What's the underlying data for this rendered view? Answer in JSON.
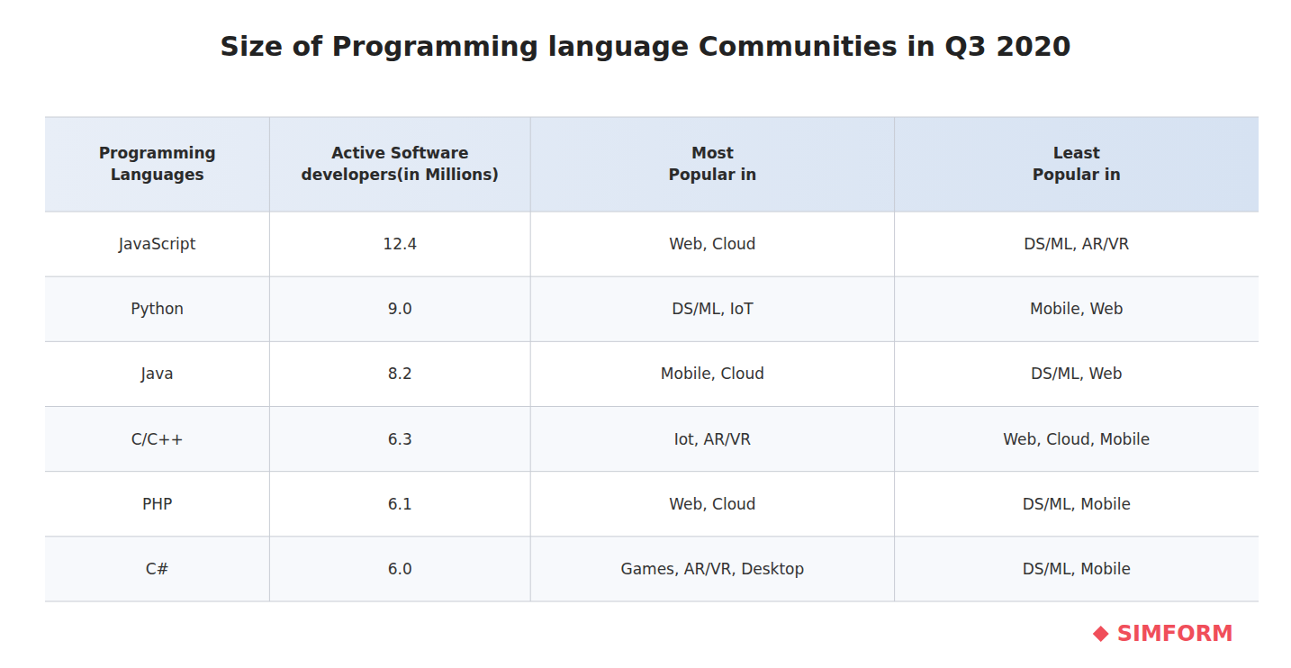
{
  "chart_data": {
    "type": "table",
    "title": "Size of Programming language Communities in Q3 2020",
    "columns": [
      "Programming\nLanguages",
      "Active Software\ndevelopers(in Millions)",
      "Most\nPopular in",
      "Least\nPopular in"
    ],
    "rows": [
      [
        "JavaScript",
        "12.4",
        "Web, Cloud",
        "DS/ML, AR/VR"
      ],
      [
        "Python",
        "9.0",
        "DS/ML, IoT",
        "Mobile, Web"
      ],
      [
        "Java",
        "8.2",
        "Mobile, Cloud",
        "DS/ML, Web"
      ],
      [
        "C/C++",
        "6.3",
        "Iot, AR/VR",
        "Web, Cloud, Mobile"
      ],
      [
        "PHP",
        "6.1",
        "Web, Cloud",
        "DS/ML, Mobile"
      ],
      [
        "C#",
        "6.0",
        "Games, AR/VR, Desktop",
        "DS/ML, Mobile"
      ]
    ],
    "annotations": [
      "SIMFORM"
    ]
  }
}
